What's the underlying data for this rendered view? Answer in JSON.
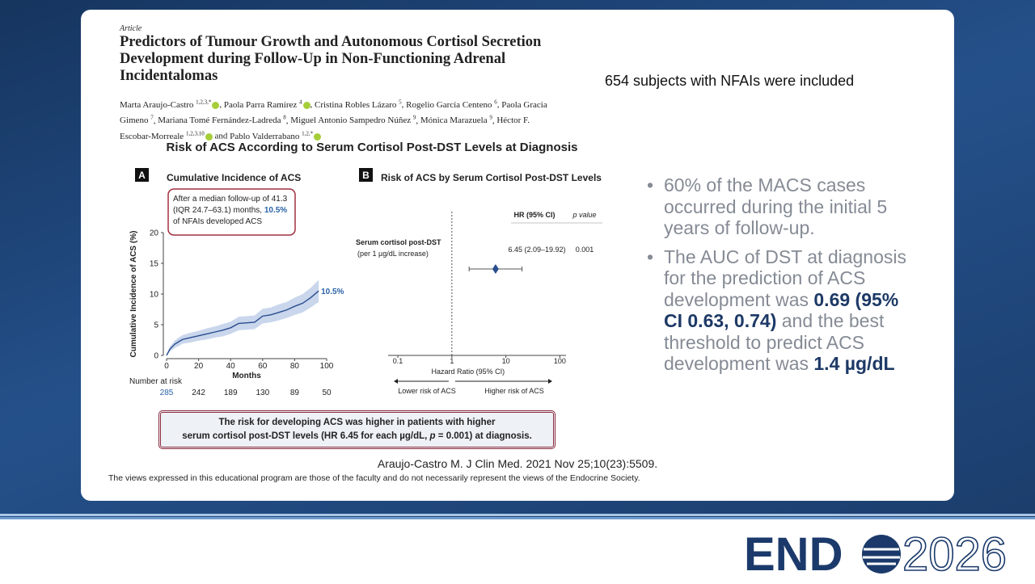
{
  "article": {
    "label": "Article",
    "title": "Predictors of Tumour Growth and Autonomous Cortisol Secretion Development during Follow-Up in Non-Functioning Adrenal Incidentalomas",
    "authors": [
      {
        "name": "Marta Araujo-Castro",
        "sup": "1,2,3,*",
        "orcid": true
      },
      {
        "name": "Paola Parra Ramírez",
        "sup": "4",
        "orcid": true
      },
      {
        "name": "Cristina Robles Lázaro",
        "sup": "5",
        "orcid": false
      },
      {
        "name": "Rogelio García Centeno",
        "sup": "6",
        "orcid": false
      },
      {
        "name": "Paola Gracia Gimeno",
        "sup": "7",
        "orcid": false
      },
      {
        "name": "Mariana Tomé Fernández-Ladreda",
        "sup": "8",
        "orcid": false
      },
      {
        "name": "Miguel Antonio Sampedro Núñez",
        "sup": "9",
        "orcid": false
      },
      {
        "name": "Mónica Marazuela",
        "sup": "9",
        "orcid": false
      },
      {
        "name": "Héctor F. Escobar-Morreale",
        "sup": "1,2,3,10",
        "orcid": true
      },
      {
        "name": "Pablo Valderrabano",
        "sup": "1,2,*",
        "orcid": true
      }
    ],
    "conjunction": "and"
  },
  "figure": {
    "title": "Risk of ACS According to Serum Cortisol Post-DST Levels at Diagnosis",
    "panel_a": {
      "letter": "A",
      "title": "Cumulative Incidence of ACS",
      "callout": {
        "before": "After a median follow-up of 41.3 (IQR 24.7–63.1) months,",
        "highlight": "10.5%",
        "after": "of NFAIs developed ACS"
      },
      "chart": {
        "type": "line",
        "x": [
          0,
          2,
          5,
          8,
          10,
          15,
          20,
          25,
          30,
          35,
          40,
          45,
          55,
          60,
          65,
          70,
          75,
          80,
          85,
          90,
          95
        ],
        "values": [
          0,
          1,
          1.8,
          2.3,
          2.6,
          2.9,
          3.2,
          3.5,
          3.8,
          4.1,
          4.5,
          5.2,
          5.4,
          6.4,
          6.6,
          7.0,
          7.4,
          8.0,
          8.5,
          9.4,
          10.5
        ],
        "ci_lower": [
          0,
          0.6,
          1.2,
          1.6,
          1.9,
          2.1,
          2.4,
          2.6,
          2.9,
          3.1,
          3.5,
          4.1,
          4.3,
          5.2,
          5.4,
          5.7,
          6.1,
          6.6,
          7.0,
          7.8,
          8.7
        ],
        "ci_upper": [
          0,
          1.4,
          2.4,
          3.0,
          3.3,
          3.7,
          4.0,
          4.4,
          4.7,
          5.1,
          5.5,
          6.3,
          6.5,
          7.6,
          7.8,
          8.3,
          8.7,
          9.4,
          10.0,
          11.0,
          12.3
        ],
        "end_label": "10.5%",
        "color": "#2a4d8f",
        "band_color": "#c9d6ec",
        "xlim": [
          0,
          100
        ],
        "ylim": [
          0,
          20
        ],
        "xticks": [
          0,
          20,
          40,
          60,
          80,
          100
        ],
        "yticks": [
          0,
          5,
          10,
          15,
          20
        ],
        "xlabel": "Months",
        "ylabel": "Cumulative Incidence of ACS (%)",
        "at_risk_label": "Number at risk",
        "at_risk": [
          285,
          242,
          189,
          130,
          89,
          50
        ]
      }
    },
    "panel_b": {
      "letter": "B",
      "title": "Risk of ACS by Serum Cortisol Post-DST Levels",
      "chart": {
        "type": "forest",
        "col_headers": [
          "HR (95% CI)",
          "p value"
        ],
        "rows": [
          {
            "label": "Serum cortisol post-DST",
            "sublabel": "(per 1 µg/dL increase)",
            "hr": 6.45,
            "ci": [
              2.09,
              19.92
            ],
            "hr_label": "6.45 (2.09–19.92)",
            "p": 0.001
          }
        ],
        "color": "#2a4d8f",
        "log": true,
        "ref_line": 1,
        "xlim": [
          0.066,
          130
        ],
        "xticks": [
          0.1,
          1,
          10,
          100
        ],
        "xlabel": "Hazard Ratio (95% CI)",
        "left_arrow": "Lower risk of ACS",
        "right_arrow": "Higher risk of ACS"
      }
    },
    "conclusion": {
      "line1": "The risk for developing ACS was higher in patients with higher",
      "line2a": "serum cortisol post-DST levels (HR 6.45 for each µg/dL,",
      "line2p": "p",
      "line2b": "= 0.001) at diagnosis."
    }
  },
  "citation": "Araujo-Castro M. J Clin Med. 2021 Nov 25;10(23):5509.",
  "disclaimer": "The views expressed in this educational program are those of the faculty and do not necessarily represent the views of the Endocrine Society.",
  "headline": "654 subjects with NFAIs were included",
  "bullets": [
    {
      "text": "60% of the MACS cases occurred during the initial 5 years of follow-up."
    },
    {
      "text": "The AUC of DST at diagnosis for the prediction of ACS development was",
      "bold1": "0.69 (95% CI 0.63, 0.74)",
      "text2": "and the best threshold to predict ACS development was",
      "bold2": "1.4 µg/dL"
    }
  ],
  "logo": {
    "prefix": "END",
    "suffix": "2026"
  }
}
